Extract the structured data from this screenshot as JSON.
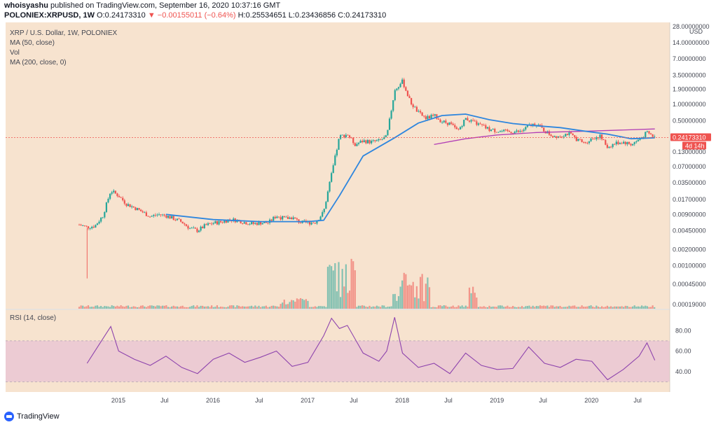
{
  "header": {
    "author": "whoisyashu",
    "published": "published on TradingView.com, September 16, 2020 10:37:16 GMT",
    "symbol": "POLONIEX:XRPUSD, 1W",
    "open_label": "O:",
    "open": "0.24173310",
    "change": "−0.00155011 (−0.64%)",
    "high_label": "H:",
    "high": "0.25534651",
    "low_label": "L:",
    "low": "0.23436856",
    "close_label": "C:",
    "close": "0.24173310"
  },
  "legend": {
    "title": "XRP / U.S. Dollar, 1W, POLONIEX",
    "ma50": "MA (50, close)",
    "vol": "Vol",
    "ma200": "MA (200, close, 0)",
    "rsi": "RSI (14, close)"
  },
  "price_badge": {
    "value": "0.24173310",
    "countdown": "4d 14h"
  },
  "brand": "TradingView",
  "colors": {
    "background": "#f7e3cf",
    "rsi_band": "#e8c4d3",
    "up": "#26a69a",
    "down": "#ef5350",
    "ma50": "#2e86de",
    "ma200": "#b23fb6",
    "rsi_line": "#8e44ad",
    "badge": "#ef5350"
  },
  "chart_data": [
    {
      "type": "candlestick",
      "title": "XRP / U.S. Dollar, 1W, POLONIEX",
      "y_scale": "log",
      "y_unit": "USD",
      "y_ticks": [
        "28.00000000",
        "14.00000000",
        "7.00000000",
        "3.50000000",
        "1.90000000",
        "1.00000000",
        "0.50000000",
        "0.24173310",
        "0.13000000",
        "0.07000000",
        "0.03500000",
        "0.01700000",
        "0.00900000",
        "0.00450000",
        "0.00200000",
        "0.00100000",
        "0.00045000",
        "0.00019000"
      ],
      "x_ticks": [
        "2015",
        "Jul",
        "2016",
        "Jul",
        "2017",
        "Jul",
        "2018",
        "Jul",
        "2019",
        "Jul",
        "2020",
        "Jul"
      ],
      "price_path": [
        [
          "2014-08",
          0.0058
        ],
        [
          "2014-09",
          0.0052
        ],
        [
          "2014-10",
          0.0055
        ],
        [
          "2014-11",
          0.0085
        ],
        [
          "2014-12",
          0.025
        ],
        [
          "2015-01",
          0.02
        ],
        [
          "2015-02",
          0.014
        ],
        [
          "2015-03",
          0.012
        ],
        [
          "2015-04",
          0.01
        ],
        [
          "2015-05",
          0.0082
        ],
        [
          "2015-06",
          0.009
        ],
        [
          "2015-07",
          0.0085
        ],
        [
          "2015-08",
          0.0075
        ],
        [
          "2015-09",
          0.0065
        ],
        [
          "2015-10",
          0.005
        ],
        [
          "2015-11",
          0.0045
        ],
        [
          "2015-12",
          0.0056
        ],
        [
          "2016-01",
          0.0062
        ],
        [
          "2016-02",
          0.0065
        ],
        [
          "2016-03",
          0.0072
        ],
        [
          "2016-04",
          0.007
        ],
        [
          "2016-05",
          0.0064
        ],
        [
          "2016-06",
          0.006
        ],
        [
          "2016-07",
          0.0063
        ],
        [
          "2016-08",
          0.0063
        ],
        [
          "2016-09",
          0.0085
        ],
        [
          "2016-10",
          0.0075
        ],
        [
          "2016-11",
          0.0079
        ],
        [
          "2016-12",
          0.0064
        ],
        [
          "2017-01",
          0.0063
        ],
        [
          "2017-02",
          0.0065
        ],
        [
          "2017-03",
          0.01
        ],
        [
          "2017-04",
          0.05
        ],
        [
          "2017-05",
          0.25
        ],
        [
          "2017-06",
          0.28
        ],
        [
          "2017-07",
          0.18
        ],
        [
          "2017-08",
          0.21
        ],
        [
          "2017-09",
          0.2
        ],
        [
          "2017-10",
          0.21
        ],
        [
          "2017-11",
          0.25
        ],
        [
          "2017-12",
          1.8
        ],
        [
          "2018-01",
          2.7
        ],
        [
          "2018-02",
          1.1
        ],
        [
          "2018-03",
          0.7
        ],
        [
          "2018-04",
          0.55
        ],
        [
          "2018-05",
          0.62
        ],
        [
          "2018-06",
          0.48
        ],
        [
          "2018-07",
          0.44
        ],
        [
          "2018-08",
          0.32
        ],
        [
          "2018-09",
          0.55
        ],
        [
          "2018-10",
          0.46
        ],
        [
          "2018-11",
          0.4
        ],
        [
          "2018-12",
          0.34
        ],
        [
          "2019-01",
          0.32
        ],
        [
          "2019-02",
          0.31
        ],
        [
          "2019-03",
          0.31
        ],
        [
          "2019-04",
          0.31
        ],
        [
          "2019-05",
          0.4
        ],
        [
          "2019-06",
          0.44
        ],
        [
          "2019-07",
          0.32
        ],
        [
          "2019-08",
          0.26
        ],
        [
          "2019-09",
          0.26
        ],
        [
          "2019-10",
          0.29
        ],
        [
          "2019-11",
          0.23
        ],
        [
          "2019-12",
          0.19
        ],
        [
          "2020-01",
          0.23
        ],
        [
          "2020-02",
          0.26
        ],
        [
          "2020-03",
          0.16
        ],
        [
          "2020-04",
          0.19
        ],
        [
          "2020-05",
          0.2
        ],
        [
          "2020-06",
          0.18
        ],
        [
          "2020-07",
          0.22
        ],
        [
          "2020-08",
          0.3
        ],
        [
          "2020-09",
          0.2417
        ]
      ],
      "ma50_path": [
        [
          "2015-07",
          0.009
        ],
        [
          "2016-01",
          0.0072
        ],
        [
          "2016-07",
          0.0066
        ],
        [
          "2017-01",
          0.0066
        ],
        [
          "2017-03",
          0.007
        ],
        [
          "2017-05",
          0.02
        ],
        [
          "2017-08",
          0.11
        ],
        [
          "2017-12",
          0.24
        ],
        [
          "2018-03",
          0.45
        ],
        [
          "2018-06",
          0.62
        ],
        [
          "2018-09",
          0.66
        ],
        [
          "2018-12",
          0.52
        ],
        [
          "2019-03",
          0.44
        ],
        [
          "2019-06",
          0.4
        ],
        [
          "2019-09",
          0.37
        ],
        [
          "2019-12",
          0.32
        ],
        [
          "2020-03",
          0.28
        ],
        [
          "2020-06",
          0.23
        ],
        [
          "2020-09",
          0.24
        ]
      ],
      "ma200_path": [
        [
          "2018-05",
          0.18
        ],
        [
          "2018-09",
          0.23
        ],
        [
          "2019-01",
          0.27
        ],
        [
          "2019-06",
          0.3
        ],
        [
          "2020-01",
          0.32
        ],
        [
          "2020-09",
          0.35
        ]
      ],
      "last_price": 0.2417331
    },
    {
      "type": "line",
      "title": "RSI (14, close)",
      "y_ticks": [
        "80.00",
        "60.00",
        "40.00"
      ],
      "band": [
        30,
        70
      ],
      "rsi_path": [
        [
          "2014-09",
          48
        ],
        [
          "2014-11",
          72
        ],
        [
          "2014-12",
          84
        ],
        [
          "2015-01",
          60
        ],
        [
          "2015-03",
          52
        ],
        [
          "2015-05",
          46
        ],
        [
          "2015-07",
          55
        ],
        [
          "2015-09",
          44
        ],
        [
          "2015-11",
          38
        ],
        [
          "2016-01",
          52
        ],
        [
          "2016-03",
          58
        ],
        [
          "2016-05",
          49
        ],
        [
          "2016-07",
          54
        ],
        [
          "2016-09",
          60
        ],
        [
          "2016-11",
          45
        ],
        [
          "2017-01",
          49
        ],
        [
          "2017-03",
          75
        ],
        [
          "2017-04",
          92
        ],
        [
          "2017-05",
          82
        ],
        [
          "2017-06",
          85
        ],
        [
          "2017-08",
          58
        ],
        [
          "2017-10",
          50
        ],
        [
          "2017-11",
          60
        ],
        [
          "2017-12",
          93
        ],
        [
          "2018-01",
          58
        ],
        [
          "2018-03",
          44
        ],
        [
          "2018-05",
          48
        ],
        [
          "2018-07",
          38
        ],
        [
          "2018-09",
          58
        ],
        [
          "2018-11",
          46
        ],
        [
          "2019-01",
          42
        ],
        [
          "2019-03",
          43
        ],
        [
          "2019-05",
          64
        ],
        [
          "2019-07",
          48
        ],
        [
          "2019-09",
          44
        ],
        [
          "2019-11",
          52
        ],
        [
          "2020-01",
          50
        ],
        [
          "2020-03",
          32
        ],
        [
          "2020-05",
          42
        ],
        [
          "2020-07",
          55
        ],
        [
          "2020-08",
          68
        ],
        [
          "2020-09",
          51
        ]
      ]
    }
  ]
}
